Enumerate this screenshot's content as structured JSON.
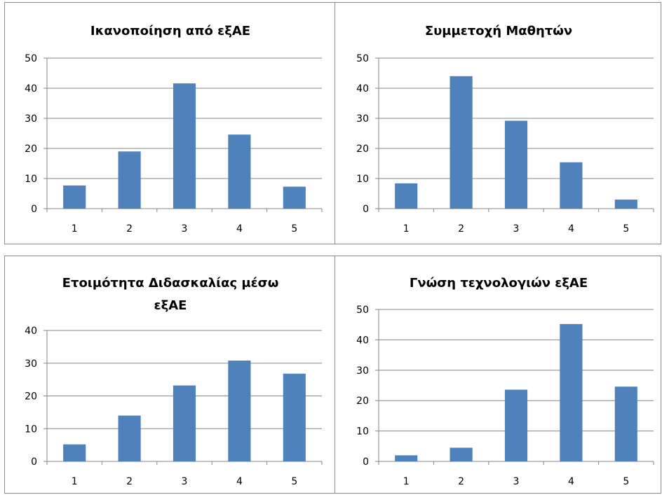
{
  "colors": {
    "bar": "#4f81bd",
    "grid": "#868686",
    "axis": "#868686",
    "border": "#8c8c8c"
  },
  "chart_data": [
    {
      "type": "bar",
      "title": [
        "Ικανοποίηση από εξΑΕ"
      ],
      "categories": [
        "1",
        "2",
        "3",
        "4",
        "5"
      ],
      "values": [
        7.7,
        19,
        41.6,
        24.6,
        7.3
      ],
      "ylim": [
        0,
        50
      ],
      "yticks": [
        0,
        10,
        20,
        30,
        40,
        50
      ],
      "grid": true,
      "xlabel": "",
      "ylabel": ""
    },
    {
      "type": "bar",
      "title": [
        "Συμμετοχή Μαθητών"
      ],
      "categories": [
        "1",
        "2",
        "3",
        "4",
        "5"
      ],
      "values": [
        8.4,
        44,
        29.2,
        15.4,
        3
      ],
      "ylim": [
        0,
        50
      ],
      "yticks": [
        0,
        10,
        20,
        30,
        40,
        50
      ],
      "grid": true,
      "xlabel": "",
      "ylabel": ""
    },
    {
      "type": "bar",
      "title": [
        "Ετοιμότητα Διδασκαλίας μέσω",
        "εξΑΕ"
      ],
      "categories": [
        "1",
        "2",
        "3",
        "4",
        "5"
      ],
      "values": [
        5.2,
        14,
        23.2,
        30.8,
        26.8
      ],
      "ylim": [
        0,
        40
      ],
      "yticks": [
        0,
        10,
        20,
        30,
        40
      ],
      "grid": true,
      "xlabel": "",
      "ylabel": ""
    },
    {
      "type": "bar",
      "title": [
        "Γνώση τεχνολογιών εξΑΕ"
      ],
      "categories": [
        "1",
        "2",
        "3",
        "4",
        "5"
      ],
      "values": [
        2,
        4.5,
        23.6,
        45.2,
        24.6
      ],
      "ylim": [
        0,
        50
      ],
      "yticks": [
        0,
        10,
        20,
        30,
        40,
        50
      ],
      "grid": true,
      "xlabel": "",
      "ylabel": ""
    }
  ]
}
